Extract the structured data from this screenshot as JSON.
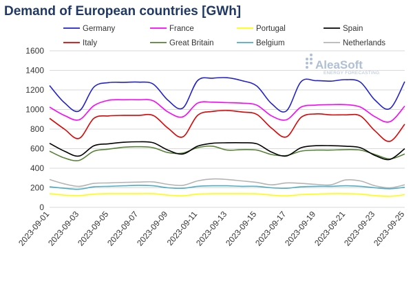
{
  "chart_data": {
    "type": "line",
    "title": "Demand of European countries [GWh]",
    "ylim": [
      0,
      1600
    ],
    "yticks": [
      0,
      200,
      400,
      600,
      800,
      1000,
      1200,
      1400,
      1600
    ],
    "grid": "horizontal",
    "legend_position": "top",
    "x": [
      "2023-09-01",
      "2023-09-02",
      "2023-09-03",
      "2023-09-04",
      "2023-09-05",
      "2023-09-06",
      "2023-09-07",
      "2023-09-08",
      "2023-09-09",
      "2023-09-10",
      "2023-09-11",
      "2023-09-12",
      "2023-09-13",
      "2023-09-14",
      "2023-09-15",
      "2023-09-16",
      "2023-09-17",
      "2023-09-18",
      "2023-09-19",
      "2023-09-20",
      "2023-09-21",
      "2023-09-22",
      "2023-09-23",
      "2023-09-24",
      "2023-09-25"
    ],
    "xtick_labels": [
      "2023-09-01",
      "2023-09-03",
      "2023-09-05",
      "2023-09-07",
      "2023-09-09",
      "2023-09-11",
      "2023-09-13",
      "2023-09-15",
      "2023-09-17",
      "2023-09-19",
      "2023-09-21",
      "2023-09-23",
      "2023-09-25"
    ],
    "series": [
      {
        "name": "Germany",
        "color": "#1f1fd6",
        "values": [
          1245,
          1070,
          985,
          1230,
          1275,
          1278,
          1280,
          1260,
          1095,
          1015,
          1295,
          1320,
          1325,
          1295,
          1240,
          1060,
          985,
          1285,
          1295,
          1290,
          1305,
          1280,
          1095,
          1010,
          1285
        ]
      },
      {
        "name": "France",
        "color": "#ff00ff",
        "values": [
          1025,
          940,
          895,
          1040,
          1095,
          1100,
          1100,
          1090,
          975,
          925,
          1065,
          1075,
          1070,
          1065,
          1045,
          935,
          895,
          1025,
          1045,
          1050,
          1050,
          1025,
          925,
          875,
          1035
        ]
      },
      {
        "name": "Portugal",
        "color": "#ffff00",
        "values": [
          140,
          125,
          120,
          135,
          140,
          140,
          140,
          140,
          125,
          118,
          135,
          140,
          140,
          140,
          138,
          125,
          118,
          130,
          135,
          140,
          140,
          135,
          120,
          112,
          130
        ]
      },
      {
        "name": "Spain",
        "color": "#000000",
        "values": [
          655,
          575,
          525,
          630,
          650,
          665,
          670,
          660,
          585,
          545,
          625,
          655,
          660,
          660,
          650,
          565,
          525,
          610,
          630,
          630,
          625,
          610,
          530,
          490,
          600
        ]
      },
      {
        "name": "Italy",
        "color": "#e00000",
        "values": [
          910,
          800,
          705,
          910,
          935,
          940,
          940,
          940,
          810,
          720,
          940,
          980,
          990,
          975,
          950,
          810,
          720,
          920,
          955,
          945,
          945,
          935,
          780,
          675,
          850
        ]
      },
      {
        "name": "Great Britain",
        "color": "#548235",
        "values": [
          575,
          505,
          480,
          575,
          595,
          615,
          620,
          610,
          560,
          555,
          610,
          625,
          585,
          590,
          585,
          540,
          530,
          575,
          585,
          585,
          590,
          585,
          540,
          495,
          545
        ]
      },
      {
        "name": "Belgium",
        "color": "#4bacc6",
        "values": [
          210,
          195,
          185,
          210,
          215,
          220,
          225,
          220,
          200,
          195,
          215,
          220,
          220,
          215,
          215,
          200,
          195,
          210,
          215,
          215,
          220,
          215,
          200,
          190,
          205
        ]
      },
      {
        "name": "Netherlands",
        "color": "#b4b4b4",
        "values": [
          285,
          240,
          215,
          245,
          250,
          255,
          258,
          260,
          235,
          225,
          270,
          290,
          285,
          270,
          255,
          230,
          250,
          245,
          235,
          230,
          280,
          270,
          220,
          200,
          230
        ]
      }
    ]
  },
  "logo": {
    "main": "AleaSoft",
    "sub": "ENERGY FORECASTING"
  }
}
